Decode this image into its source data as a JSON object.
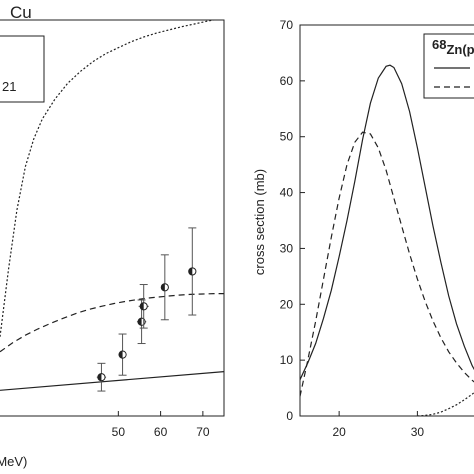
{
  "chart_data": [
    {
      "type": "line",
      "title": "Cu",
      "xlabel": "(MeV)",
      "ylabel": "",
      "xlim": [
        22,
        75
      ],
      "ylim": [
        0,
        1
      ],
      "x_ticks": [
        50,
        60,
        70
      ],
      "legend": {
        "placement": "top-left",
        "text": "21"
      },
      "series": [
        {
          "style": "dotted",
          "x": [
            22,
            24,
            26,
            28,
            30,
            32,
            35,
            38,
            41,
            44,
            47,
            50,
            53,
            56,
            59,
            62,
            65,
            68,
            71,
            75
          ],
          "y": [
            0.2,
            0.37,
            0.52,
            0.63,
            0.7,
            0.75,
            0.8,
            0.84,
            0.87,
            0.895,
            0.915,
            0.93,
            0.945,
            0.957,
            0.967,
            0.975,
            0.983,
            0.99,
            0.997,
            1.005
          ]
        },
        {
          "style": "dashed",
          "x": [
            22,
            25,
            28,
            31,
            34,
            37,
            40,
            43,
            46,
            49,
            52,
            55,
            58,
            61,
            64,
            67,
            70,
            73,
            75
          ],
          "y": [
            0.162,
            0.185,
            0.204,
            0.22,
            0.234,
            0.247,
            0.259,
            0.269,
            0.277,
            0.284,
            0.29,
            0.295,
            0.299,
            0.302,
            0.305,
            0.307,
            0.308,
            0.309,
            0.309
          ]
        },
        {
          "style": "solid",
          "x": [
            22,
            75
          ],
          "y": [
            0.065,
            0.112
          ]
        }
      ],
      "experimental": {
        "x": [
          46,
          51,
          55.5,
          56,
          61,
          67.5
        ],
        "y": [
          0.098,
          0.155,
          0.238,
          0.277,
          0.325,
          0.365
        ],
        "yerr": [
          0.035,
          0.052,
          0.055,
          0.055,
          0.082,
          0.11
        ],
        "xerr": [
          1.1,
          0,
          1.1,
          1.2,
          0,
          0
        ]
      }
    },
    {
      "type": "line",
      "title": "",
      "xlabel": "",
      "ylabel": "cross section (mb)",
      "xlim": [
        15,
        38
      ],
      "ylim": [
        0,
        70
      ],
      "x_ticks": [
        20,
        30
      ],
      "y_ticks": [
        0,
        10,
        20,
        30,
        40,
        50,
        60,
        70
      ],
      "legend": {
        "placement": "top-right",
        "label_prefix": "68",
        "label_main": "Zn(p"
      },
      "series": [
        {
          "style": "solid",
          "x": [
            15,
            16,
            17,
            18,
            19,
            20,
            21,
            22,
            23,
            24,
            25,
            26,
            26.5,
            27,
            28,
            29,
            30,
            31,
            32,
            33,
            34,
            35,
            36,
            37,
            38
          ],
          "y": [
            6.5,
            9.5,
            13,
            17.5,
            22.5,
            28.5,
            35,
            42,
            49.5,
            56,
            60.5,
            62.6,
            62.8,
            62.4,
            59.5,
            54.5,
            48,
            41,
            34,
            27.5,
            21.5,
            16.5,
            12.5,
            9,
            6.5
          ]
        },
        {
          "style": "dashed",
          "x": [
            15,
            16,
            17,
            18,
            19,
            20,
            21,
            22,
            23,
            24,
            25,
            26,
            27,
            28,
            29,
            30,
            31,
            32,
            33,
            34,
            35,
            36,
            37,
            38
          ],
          "y": [
            3.5,
            10,
            17,
            24.5,
            32,
            39,
            45,
            49,
            50.8,
            50.5,
            48,
            44,
            39,
            34,
            29,
            24.5,
            20.5,
            17,
            14,
            11.5,
            9.5,
            7.8,
            6.4,
            5.3
          ]
        },
        {
          "style": "dotted",
          "x": [
            30,
            31,
            32,
            33,
            34,
            35,
            36,
            37,
            38
          ],
          "y": [
            0,
            0.1,
            0.3,
            0.7,
            1.3,
            2.0,
            2.9,
            3.9,
            5
          ]
        }
      ]
    }
  ]
}
